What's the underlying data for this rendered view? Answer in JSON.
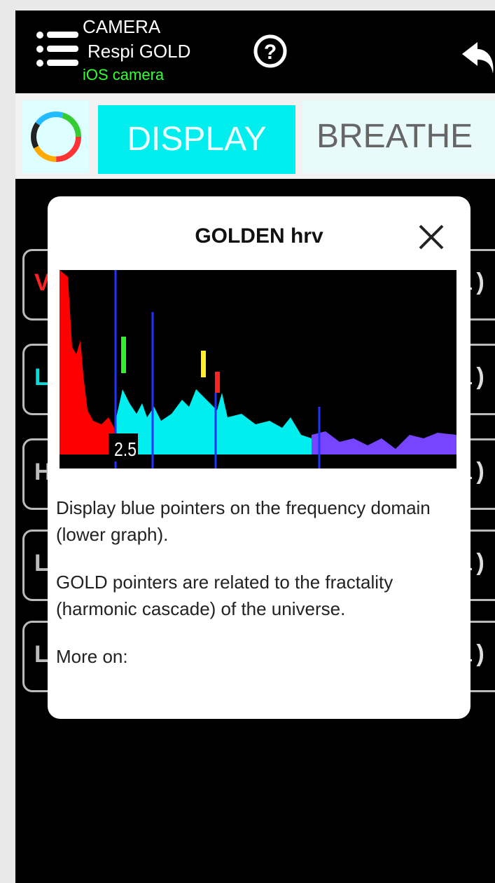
{
  "header": {
    "source": "CAMERA",
    "mode": "Respi GOLD",
    "camera": "iOS camera"
  },
  "tabs": [
    "DISPLAY",
    "BREATHE"
  ],
  "rows": [
    {
      "left": "V",
      "right": "i)"
    },
    {
      "left": "L",
      "right": "i)"
    },
    {
      "left": "H",
      "right": "i)"
    },
    {
      "left": "L",
      "right": "i)"
    },
    {
      "left": "L",
      "right": "i)"
    }
  ],
  "dialog": {
    "title": "GOLDEN hrv",
    "graph_label": "2.5",
    "paragraphs": [
      "Display blue pointers on the frequency domain (lower graph).",
      "GOLD pointers are related to the fractality (harmonic cascade) of the universe.",
      "More on:"
    ]
  }
}
